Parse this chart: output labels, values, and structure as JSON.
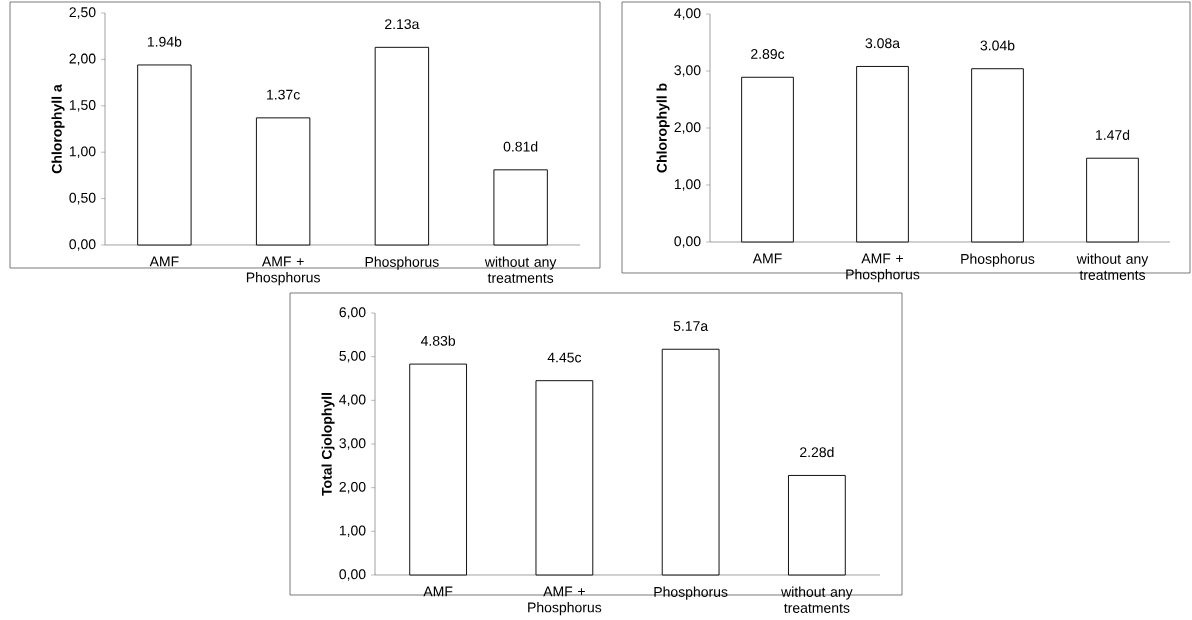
{
  "chart_data": [
    {
      "type": "bar",
      "ylabel": "Chlorophyll a",
      "categories": [
        "AMF",
        "AMF + Phosphorus",
        "Phosphorus",
        "without any treatments"
      ],
      "values": [
        1.94,
        1.37,
        2.13,
        0.81
      ],
      "value_labels": [
        "1.94b",
        "1.37c",
        "2.13a",
        "0.81d"
      ],
      "color": "#ffffff",
      "ylim": [
        0,
        2.5
      ],
      "yticks": [
        {
          "value": 0,
          "label": "0,00"
        },
        {
          "value": 0.5,
          "label": "0,50"
        },
        {
          "value": 1,
          "label": "1,00"
        },
        {
          "value": 1.5,
          "label": "1,50"
        },
        {
          "value": 2,
          "label": "2,00"
        },
        {
          "value": 2.5,
          "label": "2,50"
        }
      ]
    },
    {
      "type": "bar",
      "ylabel": "Chlorophyll b",
      "categories": [
        "AMF",
        "AMF + Phosphorus",
        "Phosphorus",
        "without any treatments"
      ],
      "values": [
        2.89,
        3.08,
        3.04,
        1.47
      ],
      "value_labels": [
        "2.89c",
        "3.08a",
        "3.04b",
        "1.47d"
      ],
      "color": "#ffffff",
      "ylim": [
        0,
        4
      ],
      "yticks": [
        {
          "value": 0,
          "label": "0,00"
        },
        {
          "value": 1,
          "label": "1,00"
        },
        {
          "value": 2,
          "label": "2,00"
        },
        {
          "value": 3,
          "label": "3,00"
        },
        {
          "value": 4,
          "label": "4,00"
        }
      ]
    },
    {
      "type": "bar",
      "ylabel": "Total Cjolophyll",
      "categories": [
        "AMF",
        "AMF + Phosphorus",
        "Phosphorus",
        "without any treatments"
      ],
      "values": [
        4.83,
        4.45,
        5.17,
        2.28
      ],
      "value_labels": [
        "4.83b",
        "4.45c",
        "5.17a",
        "2.28d"
      ],
      "color": "#ffffff",
      "ylim": [
        0,
        6
      ],
      "yticks": [
        {
          "value": 0,
          "label": "0,00"
        },
        {
          "value": 1,
          "label": "1,00"
        },
        {
          "value": 2,
          "label": "2,00"
        },
        {
          "value": 3,
          "label": "3,00"
        },
        {
          "value": 4,
          "label": "4,00"
        },
        {
          "value": 5,
          "label": "5,00"
        },
        {
          "value": 6,
          "label": "6,00"
        }
      ]
    }
  ]
}
